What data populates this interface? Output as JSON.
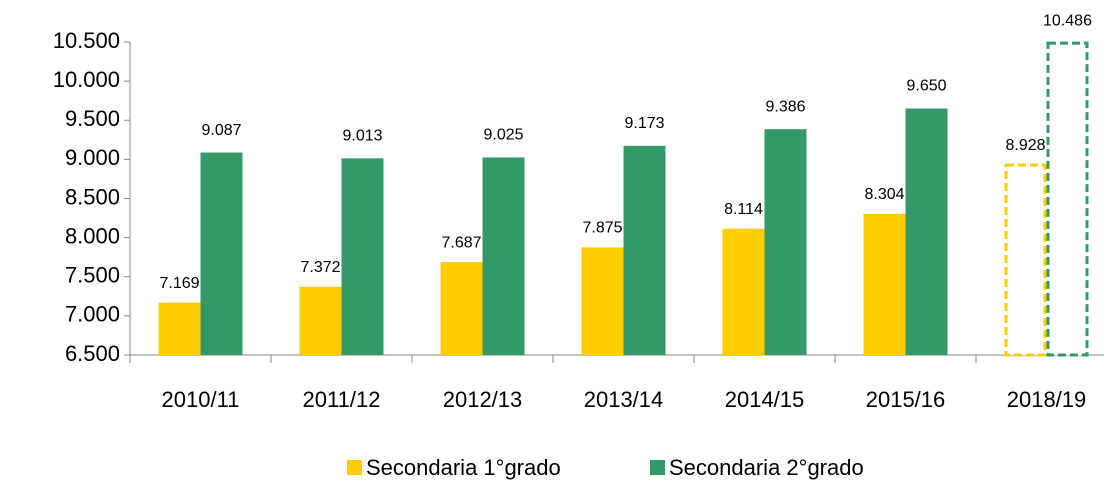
{
  "chart_data": {
    "type": "bar",
    "categories": [
      "2010/11",
      "2011/12",
      "2012/13",
      "2013/14",
      "2014/15",
      "2015/16",
      "2018/19"
    ],
    "dashed": [
      false,
      false,
      false,
      false,
      false,
      false,
      true
    ],
    "series": [
      {
        "name": "Secondaria 1°grado",
        "color": "#ffcc00",
        "values": [
          7169,
          7372,
          7687,
          7875,
          8114,
          8304,
          8928
        ],
        "value_labels": [
          "7.169",
          "7.372",
          "7.687",
          "7.875",
          "8.114",
          "8.304",
          "8.928"
        ]
      },
      {
        "name": "Secondaria 2°grado",
        "color": "#339966",
        "values": [
          9087,
          9013,
          9025,
          9173,
          9386,
          9650,
          10486
        ],
        "value_labels": [
          "9.087",
          "9.013",
          "9.025",
          "9.173",
          "9.386",
          "9.650",
          "10.486"
        ]
      }
    ],
    "ylim": [
      6500,
      10500
    ],
    "yticks": [
      {
        "value": 6500,
        "label": "6.500"
      },
      {
        "value": 7000,
        "label": "7.000"
      },
      {
        "value": 7500,
        "label": "7.500"
      },
      {
        "value": 8000,
        "label": "8.000"
      },
      {
        "value": 8500,
        "label": "8.500"
      },
      {
        "value": 9000,
        "label": "9.000"
      },
      {
        "value": 9500,
        "label": "9.500"
      },
      {
        "value": 10000,
        "label": "10.000"
      },
      {
        "value": 10500,
        "label": "10.500"
      }
    ],
    "legend": "bottom"
  }
}
